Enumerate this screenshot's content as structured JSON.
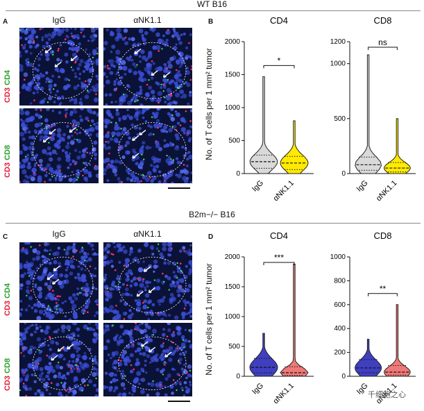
{
  "top_header": "WT B16",
  "bottom_header": "B2m−/− B16",
  "panel_labels": [
    "A",
    "B",
    "C",
    "D"
  ],
  "columns": [
    "IgG",
    "αNK1.1"
  ],
  "rows": {
    "cd4": {
      "red": "CD3",
      "green": "CD4"
    },
    "cd8": {
      "red": "CD3",
      "green": "CD8"
    }
  },
  "ylabel": "No. of T cells per 1 mm² tumor",
  "watermark": "千细胞之心",
  "colors": {
    "wt_igg": "#d9d9d9",
    "wt_ank": "#ffea00",
    "b2m_igg": "#3f3fc0",
    "b2m_ank": "#f07878"
  },
  "chart_data": [
    {
      "type": "violin",
      "title": "CD4",
      "categories": [
        "IgG",
        "αNK1.1"
      ],
      "ylim": [
        0,
        2000
      ],
      "yticks": [
        0,
        500,
        1000,
        1500,
        2000
      ],
      "series": [
        {
          "category": "IgG",
          "median": 180,
          "q1": 80,
          "q3": 280,
          "max": 1470,
          "min": 0
        },
        {
          "category": "αNK1.1",
          "median": 160,
          "q1": 60,
          "q3": 260,
          "max": 800,
          "min": 0
        }
      ],
      "significance": "*"
    },
    {
      "type": "violin",
      "title": "CD8",
      "categories": [
        "IgG",
        "αNK1.1"
      ],
      "ylim": [
        0,
        1200
      ],
      "yticks": [
        0,
        500,
        1000,
        1200
      ],
      "series": [
        {
          "category": "IgG",
          "median": 80,
          "q1": 30,
          "q3": 150,
          "max": 1080,
          "min": 0
        },
        {
          "category": "αNK1.1",
          "median": 50,
          "q1": 15,
          "q3": 100,
          "max": 500,
          "min": 0
        }
      ],
      "significance": "ns"
    },
    {
      "type": "violin",
      "title": "CD4",
      "categories": [
        "IgG",
        "αNK1.1"
      ],
      "ylim": [
        0,
        2000
      ],
      "yticks": [
        0,
        500,
        1000,
        1500,
        2000
      ],
      "series": [
        {
          "category": "IgG",
          "median": 150,
          "q1": 60,
          "q3": 300,
          "max": 720,
          "min": 0
        },
        {
          "category": "αNK1.1",
          "median": 60,
          "q1": 15,
          "q3": 160,
          "max": 1880,
          "min": 0
        }
      ],
      "significance": "***"
    },
    {
      "type": "violin",
      "title": "CD8",
      "categories": [
        "IgG",
        "αNK1.1"
      ],
      "ylim": [
        0,
        1000
      ],
      "yticks": [
        0,
        200,
        400,
        600,
        800,
        1000
      ],
      "series": [
        {
          "category": "IgG",
          "median": 70,
          "q1": 30,
          "q3": 140,
          "max": 310,
          "min": 0
        },
        {
          "category": "αNK1.1",
          "median": 35,
          "q1": 10,
          "q3": 90,
          "max": 600,
          "min": 0
        }
      ],
      "significance": "**"
    }
  ]
}
